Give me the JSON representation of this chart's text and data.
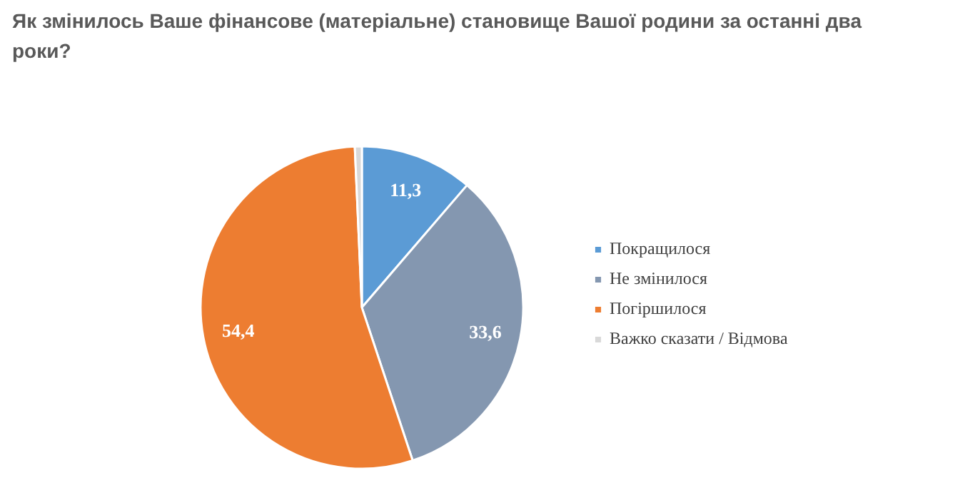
{
  "chart_data": {
    "type": "pie",
    "title": "Як змінилось Ваше фінансове (матеріальне) становище Вашої родини за останні два роки?",
    "categories": [
      "Покращилося",
      "Не змінилося",
      "Погіршилося",
      "Важко сказати / Відмова"
    ],
    "values": [
      11.3,
      33.6,
      54.4,
      0.7
    ],
    "colors": [
      "#5b9bd5",
      "#8497b0",
      "#ed7d31",
      "#d9d9d9"
    ],
    "value_labels": [
      "11,3",
      "33,6",
      "54,4",
      null
    ],
    "legend": "right"
  }
}
